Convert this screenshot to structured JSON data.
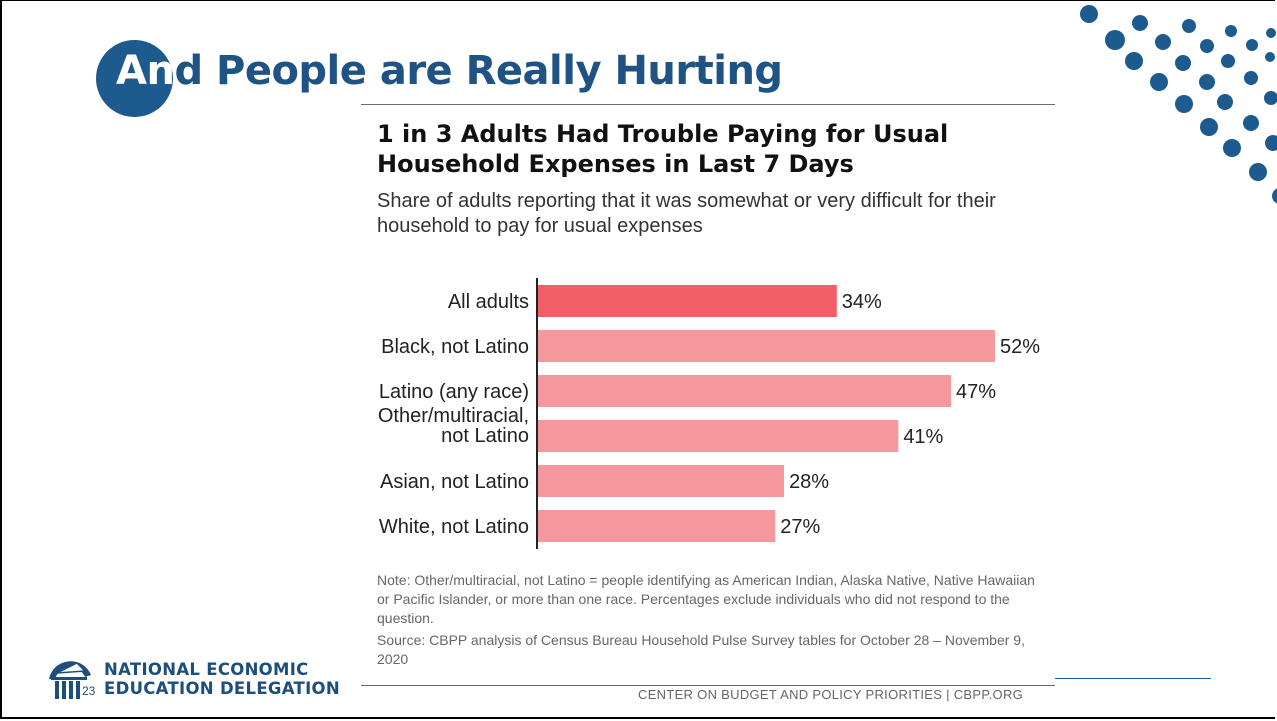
{
  "slide": {
    "title_first": "An",
    "title_rest": "d People are Really Hurting",
    "slide_number": "23"
  },
  "chart_data": {
    "type": "bar",
    "orientation": "horizontal",
    "title": "1 in 3 Adults Had Trouble Paying for Usual Household Expenses in Last 7 Days",
    "subtitle": "Share of adults reporting that it was somewhat or very difficult for their household to pay for usual expenses",
    "categories": [
      [
        "All adults"
      ],
      [
        "Black, not Latino"
      ],
      [
        "Latino (any race)"
      ],
      [
        "Other/multiracial,",
        "not Latino"
      ],
      [
        "Asian, not Latino"
      ],
      [
        "White, not Latino"
      ]
    ],
    "values": [
      34,
      52,
      47,
      41,
      28,
      27
    ],
    "value_labels": [
      "34%",
      "52%",
      "47%",
      "41%",
      "28%",
      "27%"
    ],
    "highlight_index": 0,
    "colors": {
      "highlight": "#f25f69",
      "default": "#f5989d"
    },
    "xlim": [
      0,
      52
    ],
    "grid": false,
    "legend": "none",
    "note": "Note: Other/multiracial, not Latino = people identifying as American Indian, Alaska Native, Native Hawaiian or Pacific Islander, or more than one race. Percentages exclude individuals who did not respond to the question.",
    "source": "Source: CBPP analysis of Census Bureau Household Pulse Survey tables for October 28 – November 9, 2020"
  },
  "footer": {
    "cbpp": "CENTER ON BUDGET AND POLICY PRIORITIES | CBPP.ORG"
  },
  "logo": {
    "line1": "NATIONAL ECONOMIC",
    "line2": "EDUCATION DELEGATION"
  },
  "colors": {
    "brand_blue": "#1d5b8f"
  }
}
